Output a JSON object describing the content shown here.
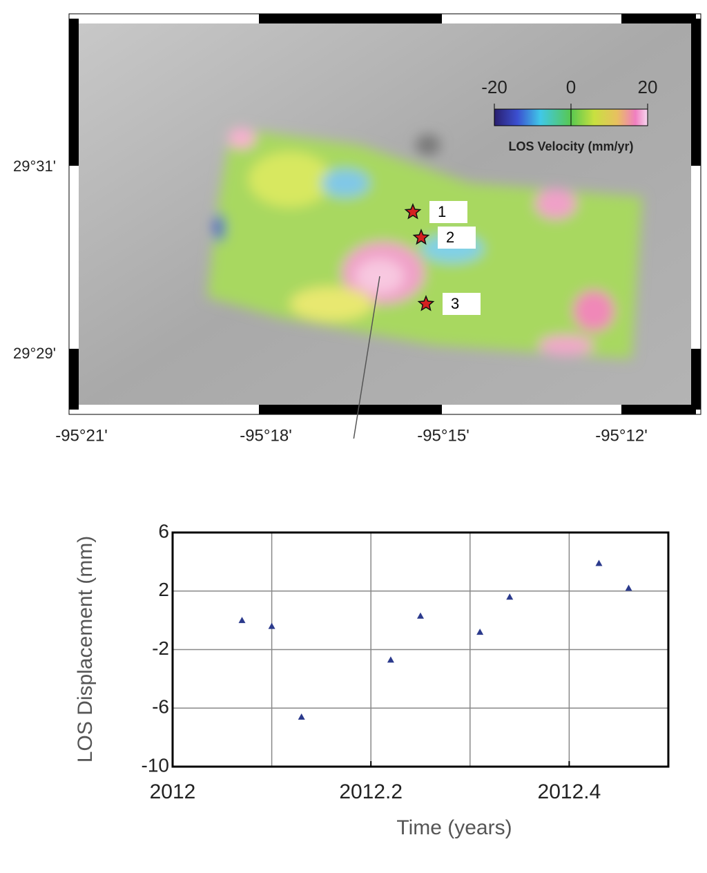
{
  "map": {
    "lat_labels": [
      "29°31'",
      "29°29'"
    ],
    "lon_labels": [
      "-95°21'",
      "-95°18'",
      "-95°15'",
      "-95°12'"
    ],
    "colorbar": {
      "label": "LOS Velocity (mm/yr)",
      "lim": [
        -20,
        20
      ],
      "ticks": [
        -20,
        0,
        20
      ]
    },
    "markers": [
      "1",
      "2",
      "3"
    ]
  },
  "chart_data": {
    "type": "scatter",
    "x_label": "Time (years)",
    "y_label": "LOS Displacement (mm)",
    "x": [
      2012.07,
      2012.1,
      2012.13,
      2012.22,
      2012.25,
      2012.31,
      2012.34,
      2012.43,
      2012.46
    ],
    "values": [
      0,
      -0.4,
      -6.6,
      -2.7,
      0.3,
      -0.8,
      1.6,
      3.9,
      2.2
    ],
    "color": "#2b3a8c",
    "xlim": [
      2012,
      2012.5
    ],
    "xticks": [
      2012,
      2012.2,
      2012.4
    ],
    "xgridlines": [
      2012.1,
      2012.2,
      2012.3,
      2012.4
    ],
    "ylim": [
      -10,
      6
    ],
    "yticks": [
      -10,
      -6,
      -2,
      2,
      6
    ],
    "grid": true
  }
}
